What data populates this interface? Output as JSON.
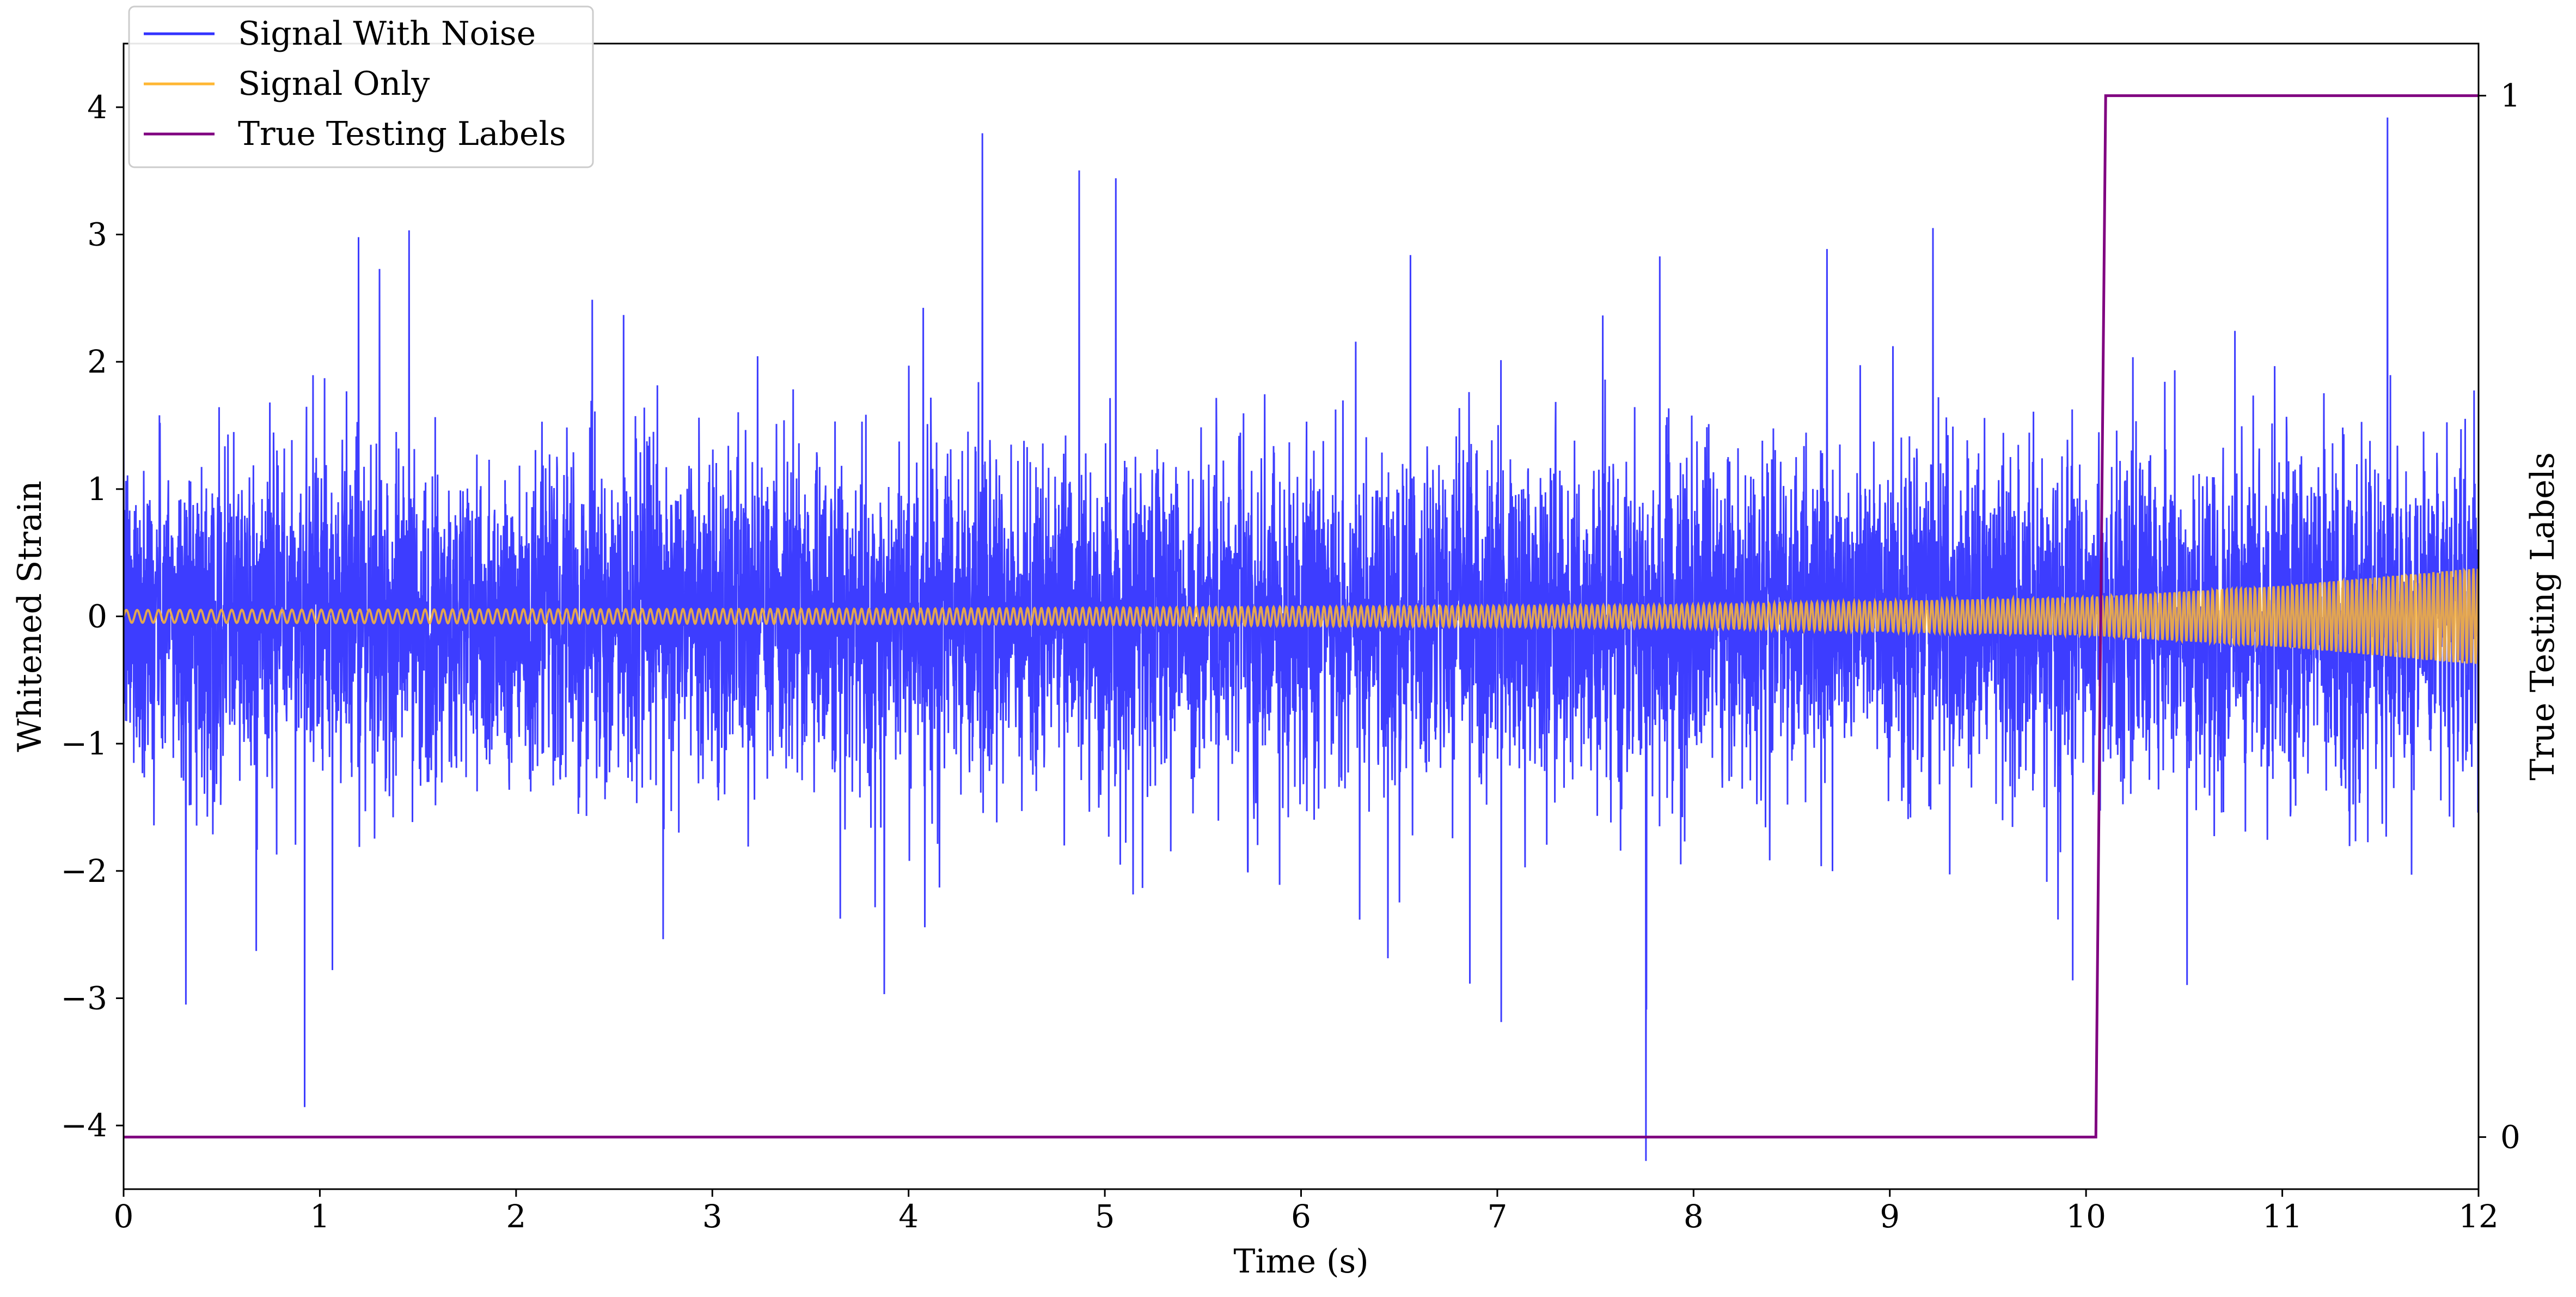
{
  "colors": {
    "noise": "#3333ff",
    "signal": "#ffb733",
    "labels": "#800080",
    "axis": "#000000",
    "background": "#ffffff"
  },
  "legend": {
    "placement": "top-left",
    "items": [
      {
        "label": "Signal With Noise",
        "color_key": "noise"
      },
      {
        "label": "Signal Only",
        "color_key": "signal"
      },
      {
        "label": "True Testing Labels",
        "color_key": "labels"
      }
    ]
  },
  "chart_data": {
    "type": "line",
    "title": "",
    "xlabel": "Time (s)",
    "ylabel": "Whitened Strain",
    "ylabel_right": "True Testing Labels",
    "xlim": [
      0,
      12
    ],
    "ylim": [
      -4.5,
      4.5
    ],
    "ylim_right": [
      -0.05,
      1.05
    ],
    "xticks": [
      0,
      1,
      2,
      3,
      4,
      5,
      6,
      7,
      8,
      9,
      10,
      11,
      12
    ],
    "yticks": [
      -4,
      -3,
      -2,
      -1,
      0,
      1,
      2,
      3,
      4
    ],
    "yticks_right": [
      0,
      1
    ],
    "grid": false,
    "series": [
      {
        "name": "Signal With Noise",
        "color_key": "noise",
        "axis": "left",
        "description": "noisy whitened strain, roughly ±1.5 typical with spikes up to ±4",
        "envelope": {
          "typical_abs": 1.4,
          "max": 3.85,
          "min": -4.2
        }
      },
      {
        "name": "Signal Only",
        "color_key": "signal",
        "axis": "left",
        "description": "chirp signal with growing amplitude",
        "amplitude": {
          "t": [
            0,
            4,
            8,
            10,
            11,
            12
          ],
          "a": [
            0.05,
            0.06,
            0.09,
            0.15,
            0.24,
            0.38
          ]
        }
      },
      {
        "name": "True Testing Labels",
        "color_key": "labels",
        "axis": "right",
        "x": [
          0,
          10.05,
          10.1,
          12
        ],
        "y": [
          0,
          0,
          1,
          1
        ]
      }
    ]
  }
}
